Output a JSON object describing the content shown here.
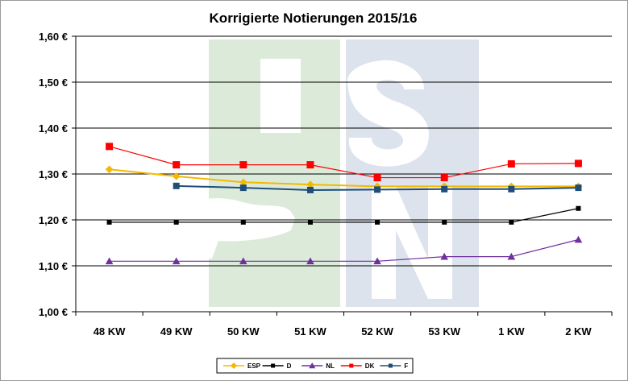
{
  "chart_data": {
    "type": "line",
    "title": "Korrigierte Notierungen 2015/16",
    "categories": [
      "48 KW",
      "49 KW",
      "50 KW",
      "51 KW",
      "52 KW",
      "53 KW",
      "1 KW",
      "2 KW"
    ],
    "ylim": [
      1.0,
      1.6
    ],
    "yticks": [
      "1,00 €",
      "1,10 €",
      "1,20 €",
      "1,30 €",
      "1,40 €",
      "1,50 €",
      "1,60 €"
    ],
    "grid": true,
    "legend_position": "bottom",
    "series": [
      {
        "name": "ESP",
        "color": "#f5b800",
        "marker": "diamond",
        "values": [
          1.31,
          1.295,
          1.282,
          1.277,
          1.273,
          1.273,
          1.273,
          1.273
        ]
      },
      {
        "name": "D",
        "color": "#000000",
        "marker": "square",
        "values": [
          1.195,
          1.195,
          1.195,
          1.195,
          1.195,
          1.195,
          1.195,
          1.225
        ]
      },
      {
        "name": "NL",
        "color": "#7030a0",
        "marker": "triangle",
        "values": [
          1.11,
          1.11,
          1.11,
          1.11,
          1.11,
          1.12,
          1.12,
          1.157
        ]
      },
      {
        "name": "DK",
        "color": "#ff0000",
        "marker": "square",
        "values": [
          1.36,
          1.32,
          1.32,
          1.32,
          1.292,
          1.292,
          1.322,
          1.323
        ]
      },
      {
        "name": "F",
        "color": "#1f4e79",
        "marker": "square",
        "values": [
          null,
          1.274,
          1.27,
          1.265,
          1.266,
          1.267,
          1.267,
          1.27
        ]
      }
    ]
  },
  "watermark": {
    "name": "ISN logo",
    "letters": "ISN"
  }
}
